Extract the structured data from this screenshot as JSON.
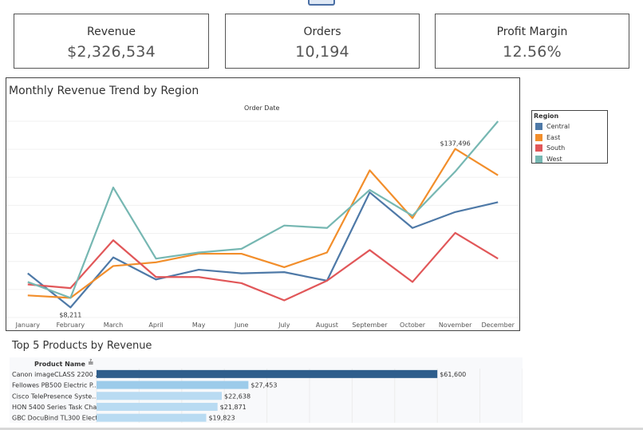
{
  "kpis": {
    "revenue": {
      "label": "Revenue",
      "value": "$2,326,534"
    },
    "orders": {
      "label": "Orders",
      "value": "10,194"
    },
    "margin": {
      "label": "Profit Margin",
      "value": "12.56%"
    }
  },
  "colors": {
    "Central": "#4e79a7",
    "East": "#f28e2b",
    "South": "#e15759",
    "West": "#76b7b2",
    "bar_highlight": "#2f5e8c",
    "bar_light": "#9ccbea",
    "bar_lighter": "#b9dbf2"
  },
  "chart_data": [
    {
      "type": "line",
      "title": "Monthly Revenue Trend by Region",
      "xlabel": "Order Date",
      "ylabel": "",
      "ylim": [
        0,
        160000
      ],
      "categories": [
        "January",
        "February",
        "March",
        "April",
        "May",
        "June",
        "July",
        "August",
        "September",
        "October",
        "November",
        "December"
      ],
      "legend_title": "Region",
      "legend_position": "right",
      "series": [
        {
          "name": "Central",
          "values": [
            36000,
            8211,
            49000,
            31000,
            39000,
            36000,
            37000,
            30000,
            102000,
            73000,
            86000,
            94000
          ]
        },
        {
          "name": "East",
          "values": [
            18000,
            16000,
            42000,
            45000,
            52000,
            52000,
            41000,
            53000,
            120000,
            81000,
            137496,
            116000
          ]
        },
        {
          "name": "South",
          "values": [
            27000,
            24000,
            63000,
            33000,
            33000,
            28000,
            14000,
            30000,
            55000,
            29000,
            69000,
            48000
          ]
        },
        {
          "name": "West",
          "values": [
            29000,
            16000,
            106000,
            48000,
            53000,
            56000,
            75000,
            73000,
            104000,
            83000,
            119000,
            160000
          ]
        }
      ],
      "annotations": [
        {
          "text": "$137,496",
          "series": "East",
          "category": "November"
        },
        {
          "text": "$8,211",
          "series": "Central",
          "category": "February"
        }
      ]
    },
    {
      "type": "bar",
      "title": "Top 5 Products by Revenue",
      "category_header": "Product Name",
      "categories": [
        "Canon imageCLASS 2200 ...",
        "Fellowes PB500 Electric P...",
        "Cisco TelePresence Syste...",
        "HON 5400 Series Task Cha...",
        "GBC DocuBind TL300 Elect..."
      ],
      "values": [
        61600,
        27453,
        22638,
        21871,
        19823
      ],
      "value_labels": [
        "$61,600",
        "$27,453",
        "$22,638",
        "$21,871",
        "$19,823"
      ],
      "xlim": [
        0,
        77000
      ]
    }
  ]
}
